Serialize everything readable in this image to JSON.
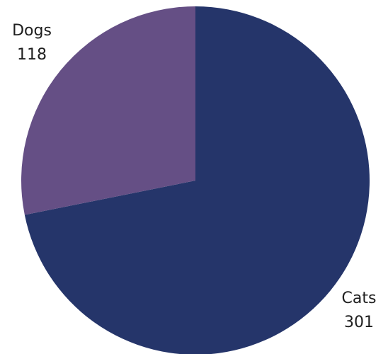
{
  "chart_data": {
    "type": "pie",
    "title": "",
    "slices": [
      {
        "label": "Cats",
        "value": 301,
        "color": "#25356a"
      },
      {
        "label": "Dogs",
        "value": 118,
        "color": "#654f85"
      }
    ],
    "start_angle_deg": 0,
    "direction": "clockwise",
    "legend": "none",
    "data_labels": "outside"
  }
}
